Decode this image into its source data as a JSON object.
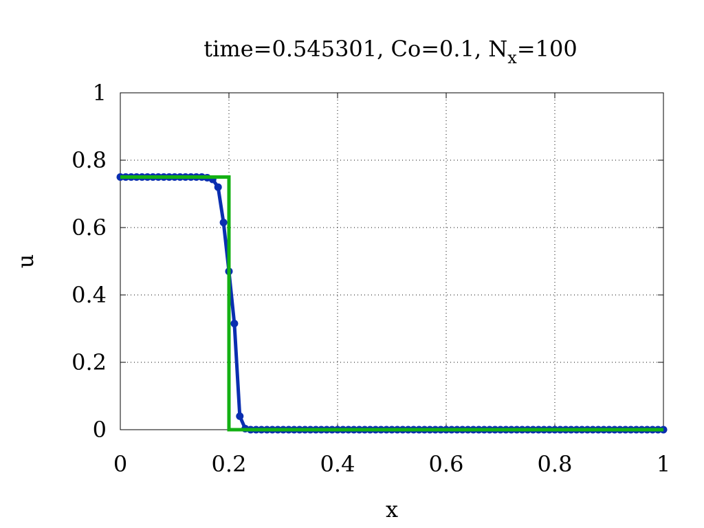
{
  "chart_data": {
    "type": "line",
    "title_prefix": "time=0.545301, Co=0.1, N",
    "title_subscript": "x",
    "title_suffix": "=100",
    "xlabel": "x",
    "ylabel": "u",
    "xlim": [
      0,
      1
    ],
    "ylim": [
      0,
      1
    ],
    "x_ticks": [
      "0",
      "0.2",
      "0.4",
      "0.6",
      "0.8",
      "1"
    ],
    "y_ticks": [
      "0",
      "0.2",
      "0.4",
      "0.6",
      "0.8",
      "1"
    ],
    "grid": true,
    "colors": {
      "numerical": "#0a2eb0",
      "exact": "#13b013"
    },
    "series": [
      {
        "style": "line+markers",
        "x": [
          0,
          0.01,
          0.02,
          0.03,
          0.04,
          0.05,
          0.06,
          0.07,
          0.08,
          0.09,
          0.1,
          0.11,
          0.12,
          0.13,
          0.14,
          0.15,
          0.16,
          0.17,
          0.18,
          0.19,
          0.2,
          0.21,
          0.22,
          0.23,
          0.24,
          0.25,
          0.26,
          0.27,
          0.28,
          0.29,
          0.3,
          0.31,
          0.32,
          0.33,
          0.34,
          0.35,
          0.36,
          0.37,
          0.38,
          0.39,
          0.4,
          0.41,
          0.42,
          0.43,
          0.44,
          0.45,
          0.46,
          0.47,
          0.48,
          0.49,
          0.5,
          0.51,
          0.52,
          0.53,
          0.54,
          0.55,
          0.56,
          0.57,
          0.58,
          0.59,
          0.6,
          0.61,
          0.62,
          0.63,
          0.64,
          0.65,
          0.66,
          0.67,
          0.68,
          0.69,
          0.7,
          0.71,
          0.72,
          0.73,
          0.74,
          0.75,
          0.76,
          0.77,
          0.78,
          0.79,
          0.8,
          0.81,
          0.82,
          0.83,
          0.84,
          0.85,
          0.86,
          0.87,
          0.88,
          0.89,
          0.9,
          0.91,
          0.92,
          0.93,
          0.94,
          0.95,
          0.96,
          0.97,
          0.98,
          0.99,
          1.0
        ],
        "y": [
          0.75,
          0.75,
          0.75,
          0.75,
          0.75,
          0.75,
          0.75,
          0.75,
          0.75,
          0.75,
          0.75,
          0.75,
          0.75,
          0.75,
          0.75,
          0.75,
          0.748,
          0.743,
          0.72,
          0.615,
          0.47,
          0.315,
          0.04,
          0.003,
          0,
          0,
          0,
          0,
          0,
          0,
          0,
          0,
          0,
          0,
          0,
          0,
          0,
          0,
          0,
          0,
          0,
          0,
          0,
          0,
          0,
          0,
          0,
          0,
          0,
          0,
          0,
          0,
          0,
          0,
          0,
          0,
          0,
          0,
          0,
          0,
          0,
          0,
          0,
          0,
          0,
          0,
          0,
          0,
          0,
          0,
          0,
          0,
          0,
          0,
          0,
          0,
          0,
          0,
          0,
          0,
          0,
          0,
          0,
          0,
          0,
          0,
          0,
          0,
          0,
          0,
          0,
          0,
          0,
          0,
          0,
          0,
          0,
          0,
          0,
          0,
          0
        ]
      },
      {
        "style": "line",
        "x": [
          0,
          0.2,
          0.2,
          0.21,
          1
        ],
        "y": [
          0.75,
          0.75,
          0,
          0,
          0
        ]
      }
    ]
  }
}
